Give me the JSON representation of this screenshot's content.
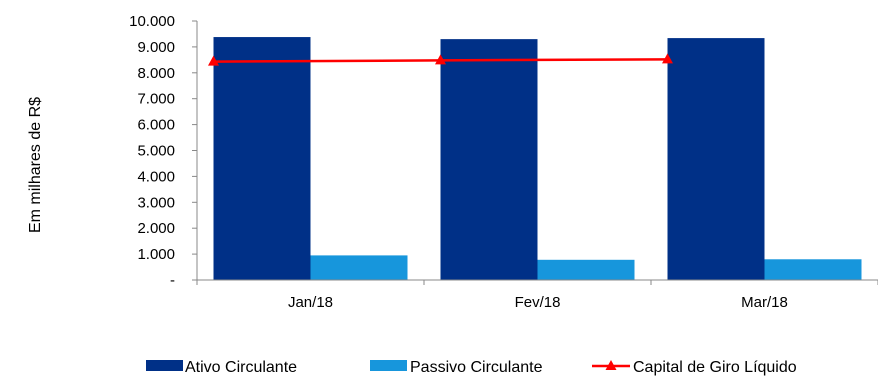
{
  "chart_data": {
    "type": "bar",
    "categories": [
      "Jan/18",
      "Fev/18",
      "Mar/18"
    ],
    "ylabel": "Em milhares de R$",
    "ylim": [
      0,
      10000
    ],
    "yticks": [
      {
        "value": 0,
        "label": "-"
      },
      {
        "value": 1000,
        "label": "1.000"
      },
      {
        "value": 2000,
        "label": "2.000"
      },
      {
        "value": 3000,
        "label": "3.000"
      },
      {
        "value": 4000,
        "label": "4.000"
      },
      {
        "value": 5000,
        "label": "5.000"
      },
      {
        "value": 6000,
        "label": "6.000"
      },
      {
        "value": 7000,
        "label": "7.000"
      },
      {
        "value": 8000,
        "label": "8.000"
      },
      {
        "value": 9000,
        "label": "9.000"
      },
      {
        "value": 10000,
        "label": "10.000"
      }
    ],
    "grid": false,
    "legend": "bottom",
    "series": [
      {
        "name": "Ativo Circulante",
        "type": "bar",
        "color": "#003087",
        "values": [
          9380,
          9300,
          9340
        ]
      },
      {
        "name": "Passivo Circulante",
        "type": "bar",
        "color": "#1796dc",
        "values": [
          950,
          780,
          800
        ]
      },
      {
        "name": "Capital de Giro Líquido",
        "type": "line",
        "color": "#ff0000",
        "marker": "triangle",
        "values": [
          8430,
          8480,
          8520
        ]
      }
    ]
  }
}
